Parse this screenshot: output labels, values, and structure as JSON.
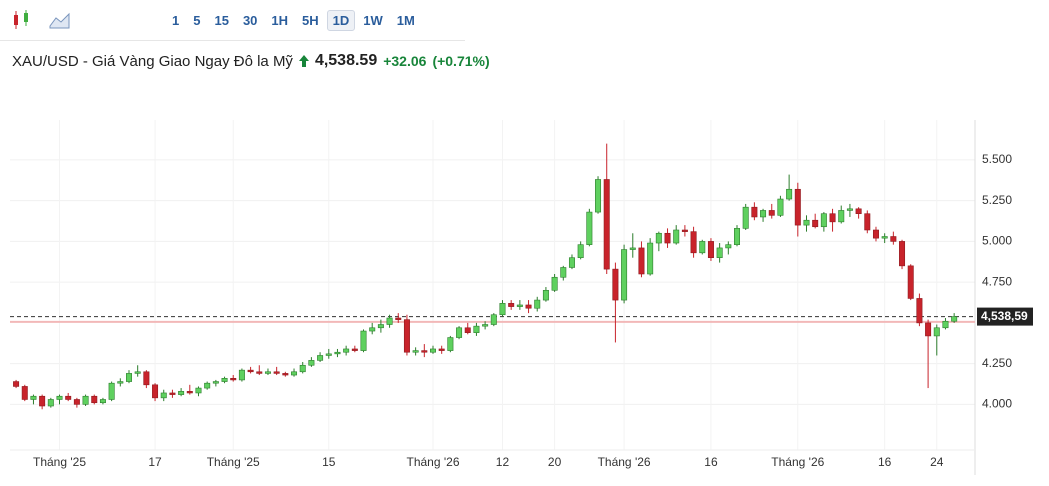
{
  "toolbar": {
    "intervals": [
      "1",
      "5",
      "15",
      "30",
      "1H",
      "5H",
      "1D",
      "1W",
      "1M"
    ],
    "selected_index": 6
  },
  "header": {
    "title": "XAU/USD - Giá Vàng Giao Ngay Đô la Mỹ",
    "price": "4,538.59",
    "change": "+32.06",
    "change_percent": "(+0.71%)"
  },
  "chart_data": {
    "type": "candlestick",
    "ohlc": [
      [
        4140,
        4150,
        4100,
        4110
      ],
      [
        4110,
        4120,
        4020,
        4030
      ],
      [
        4030,
        4060,
        4000,
        4050
      ],
      [
        4050,
        4060,
        3970,
        3990
      ],
      [
        3990,
        4040,
        3980,
        4030
      ],
      [
        4030,
        4060,
        4000,
        4050
      ],
      [
        4050,
        4070,
        4020,
        4030
      ],
      [
        4030,
        4040,
        3980,
        4000
      ],
      [
        4000,
        4060,
        3990,
        4050
      ],
      [
        4050,
        4060,
        4000,
        4010
      ],
      [
        4010,
        4040,
        4000,
        4030
      ],
      [
        4030,
        4140,
        4020,
        4130
      ],
      [
        4130,
        4160,
        4110,
        4140
      ],
      [
        4140,
        4210,
        4130,
        4190
      ],
      [
        4190,
        4240,
        4170,
        4200
      ],
      [
        4200,
        4210,
        4100,
        4120
      ],
      [
        4120,
        4130,
        4020,
        4040
      ],
      [
        4040,
        4090,
        4020,
        4070
      ],
      [
        4070,
        4090,
        4040,
        4060
      ],
      [
        4060,
        4100,
        4050,
        4080
      ],
      [
        4080,
        4120,
        4060,
        4070
      ],
      [
        4070,
        4110,
        4050,
        4100
      ],
      [
        4100,
        4140,
        4090,
        4130
      ],
      [
        4130,
        4150,
        4110,
        4140
      ],
      [
        4140,
        4170,
        4130,
        4160
      ],
      [
        4160,
        4180,
        4140,
        4150
      ],
      [
        4150,
        4220,
        4140,
        4210
      ],
      [
        4210,
        4230,
        4190,
        4200
      ],
      [
        4200,
        4240,
        4180,
        4190
      ],
      [
        4190,
        4220,
        4180,
        4200
      ],
      [
        4200,
        4230,
        4180,
        4190
      ],
      [
        4190,
        4200,
        4170,
        4180
      ],
      [
        4180,
        4220,
        4170,
        4200
      ],
      [
        4200,
        4260,
        4190,
        4240
      ],
      [
        4240,
        4290,
        4230,
        4270
      ],
      [
        4270,
        4320,
        4260,
        4300
      ],
      [
        4300,
        4340,
        4280,
        4310
      ],
      [
        4310,
        4340,
        4290,
        4320
      ],
      [
        4320,
        4360,
        4300,
        4340
      ],
      [
        4340,
        4360,
        4320,
        4330
      ],
      [
        4330,
        4460,
        4320,
        4450
      ],
      [
        4450,
        4500,
        4430,
        4470
      ],
      [
        4470,
        4520,
        4440,
        4490
      ],
      [
        4490,
        4550,
        4470,
        4530
      ],
      [
        4530,
        4560,
        4500,
        4520
      ],
      [
        4520,
        4550,
        4300,
        4320
      ],
      [
        4320,
        4350,
        4300,
        4330
      ],
      [
        4330,
        4370,
        4290,
        4320
      ],
      [
        4320,
        4360,
        4310,
        4340
      ],
      [
        4340,
        4360,
        4310,
        4330
      ],
      [
        4330,
        4420,
        4320,
        4410
      ],
      [
        4410,
        4480,
        4400,
        4470
      ],
      [
        4470,
        4500,
        4430,
        4440
      ],
      [
        4440,
        4500,
        4420,
        4480
      ],
      [
        4480,
        4510,
        4460,
        4490
      ],
      [
        4490,
        4560,
        4480,
        4550
      ],
      [
        4550,
        4640,
        4540,
        4620
      ],
      [
        4620,
        4640,
        4580,
        4600
      ],
      [
        4600,
        4640,
        4580,
        4610
      ],
      [
        4610,
        4640,
        4560,
        4590
      ],
      [
        4590,
        4660,
        4570,
        4640
      ],
      [
        4640,
        4720,
        4630,
        4700
      ],
      [
        4700,
        4800,
        4690,
        4780
      ],
      [
        4780,
        4850,
        4760,
        4840
      ],
      [
        4840,
        4920,
        4830,
        4900
      ],
      [
        4900,
        5000,
        4890,
        4980
      ],
      [
        4980,
        5200,
        4970,
        5180
      ],
      [
        5180,
        5400,
        5170,
        5380
      ],
      [
        5380,
        5600,
        4800,
        4830
      ],
      [
        4830,
        4870,
        4380,
        4640
      ],
      [
        4640,
        4980,
        4620,
        4950
      ],
      [
        4950,
        5050,
        4900,
        4960
      ],
      [
        4960,
        5000,
        4780,
        4800
      ],
      [
        4800,
        5020,
        4790,
        4990
      ],
      [
        4990,
        5060,
        4940,
        5050
      ],
      [
        5050,
        5080,
        4960,
        4990
      ],
      [
        4990,
        5100,
        4980,
        5070
      ],
      [
        5070,
        5100,
        5030,
        5060
      ],
      [
        5060,
        5090,
        4900,
        4930
      ],
      [
        4930,
        5010,
        4920,
        5000
      ],
      [
        5000,
        5020,
        4880,
        4900
      ],
      [
        4900,
        4990,
        4870,
        4960
      ],
      [
        4960,
        5000,
        4920,
        4980
      ],
      [
        4980,
        5100,
        4970,
        5080
      ],
      [
        5080,
        5230,
        5070,
        5210
      ],
      [
        5210,
        5240,
        5130,
        5150
      ],
      [
        5150,
        5200,
        5120,
        5190
      ],
      [
        5190,
        5230,
        5140,
        5160
      ],
      [
        5160,
        5280,
        5150,
        5260
      ],
      [
        5260,
        5410,
        5250,
        5320
      ],
      [
        5320,
        5360,
        5030,
        5100
      ],
      [
        5100,
        5160,
        5060,
        5130
      ],
      [
        5130,
        5170,
        5080,
        5090
      ],
      [
        5090,
        5180,
        5060,
        5170
      ],
      [
        5170,
        5200,
        5060,
        5120
      ],
      [
        5120,
        5220,
        5110,
        5190
      ],
      [
        5190,
        5230,
        5150,
        5200
      ],
      [
        5200,
        5210,
        5140,
        5170
      ],
      [
        5170,
        5190,
        5050,
        5070
      ],
      [
        5070,
        5090,
        5000,
        5020
      ],
      [
        5020,
        5050,
        4990,
        5030
      ],
      [
        5030,
        5060,
        4980,
        5000
      ],
      [
        5000,
        5010,
        4830,
        4850
      ],
      [
        4850,
        4860,
        4640,
        4650
      ],
      [
        4650,
        4680,
        4480,
        4500
      ],
      [
        4500,
        4520,
        4100,
        4420
      ],
      [
        4420,
        4490,
        4300,
        4470
      ],
      [
        4470,
        4530,
        4460,
        4510
      ],
      [
        4510,
        4560,
        4500,
        4538.59
      ]
    ],
    "xlim": [
      -0.7,
      110.4
    ],
    "xticks": [
      {
        "value": 5,
        "label": "Tháng '25"
      },
      {
        "value": 16,
        "label": "17"
      },
      {
        "value": 25,
        "label": "Tháng '25"
      },
      {
        "value": 36,
        "label": "15"
      },
      {
        "value": 48,
        "label": "Tháng '26"
      },
      {
        "value": 56,
        "label": "12"
      },
      {
        "value": 62,
        "label": "20"
      },
      {
        "value": 70,
        "label": "Tháng '26"
      },
      {
        "value": 80,
        "label": "16"
      },
      {
        "value": 90,
        "label": "Tháng '26"
      },
      {
        "value": 100,
        "label": "16"
      },
      {
        "value": 106,
        "label": "24"
      }
    ],
    "ylim": [
      3720,
      5745
    ],
    "yticks": [
      {
        "value": 4000,
        "label": "4.000"
      },
      {
        "value": 4250,
        "label": "4.250"
      },
      {
        "value": 4750,
        "label": "4.750"
      },
      {
        "value": 5000,
        "label": "5.000"
      },
      {
        "value": 5250,
        "label": "5.250"
      },
      {
        "value": 5500,
        "label": "5.500"
      }
    ],
    "last_price": {
      "value": 4538.59,
      "label": "4,538,59"
    },
    "prev_close": 4506.53,
    "grid": true,
    "up_color": "#5fd05f",
    "up_border": "#2c7d2c",
    "down_color": "#c8232b",
    "down_border": "#8e1a1f"
  }
}
